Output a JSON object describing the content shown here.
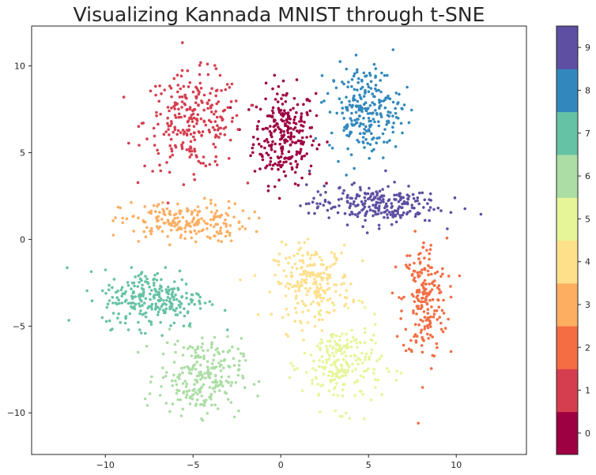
{
  "chart_data": {
    "type": "scatter",
    "title": "Visualizing Kannada MNIST through t-SNE",
    "xlabel": "",
    "ylabel": "",
    "xlim": [
      -14.2,
      14
    ],
    "ylim": [
      -12.4,
      12.3
    ],
    "x_ticks": [
      -10,
      -5,
      0,
      5,
      10
    ],
    "y_ticks": [
      -10,
      -5,
      0,
      5,
      10
    ],
    "x_tick_labels": [
      "−10",
      "−5",
      "0",
      "5",
      "10"
    ],
    "y_tick_labels": [
      "−10",
      "−5",
      "0",
      "5",
      "10"
    ],
    "grid": false,
    "colorbar": {
      "labels": [
        "0",
        "1",
        "2",
        "3",
        "4",
        "5",
        "6",
        "7",
        "8",
        "9"
      ],
      "colors": [
        "#9e0142",
        "#d53e4f",
        "#f46d43",
        "#fdae61",
        "#fee08b",
        "#e6f598",
        "#abdda4",
        "#66c2a5",
        "#3288bd",
        "#5e4fa2"
      ]
    },
    "clusters": [
      {
        "label": "0",
        "center": [
          0.2,
          6.0
        ],
        "spread": [
          2.1,
          3.3
        ],
        "approx_points": 260
      },
      {
        "label": "1",
        "center": [
          -5.0,
          6.8
        ],
        "spread": [
          3.3,
          3.3
        ],
        "approx_points": 260
      },
      {
        "label": "2",
        "center": [
          8.2,
          -3.5
        ],
        "spread": [
          1.5,
          4.2
        ],
        "approx_points": 200
      },
      {
        "label": "3",
        "center": [
          -5.5,
          1.0
        ],
        "spread": [
          4.3,
          1.4
        ],
        "approx_points": 200
      },
      {
        "label": "4",
        "center": [
          1.8,
          -2.5
        ],
        "spread": [
          2.6,
          2.5
        ],
        "approx_points": 220
      },
      {
        "label": "5",
        "center": [
          3.5,
          -7.2
        ],
        "spread": [
          2.7,
          3.0
        ],
        "approx_points": 220
      },
      {
        "label": "6",
        "center": [
          -4.6,
          -7.9
        ],
        "spread": [
          2.8,
          2.6
        ],
        "approx_points": 240
      },
      {
        "label": "7",
        "center": [
          -7.2,
          -3.4
        ],
        "spread": [
          3.5,
          2.0
        ],
        "approx_points": 260
      },
      {
        "label": "8",
        "center": [
          4.8,
          7.5
        ],
        "spread": [
          2.4,
          3.0
        ],
        "approx_points": 240
      },
      {
        "label": "9",
        "center": [
          5.3,
          2.0
        ],
        "spread": [
          4.4,
          1.3
        ],
        "approx_points": 240
      }
    ]
  }
}
